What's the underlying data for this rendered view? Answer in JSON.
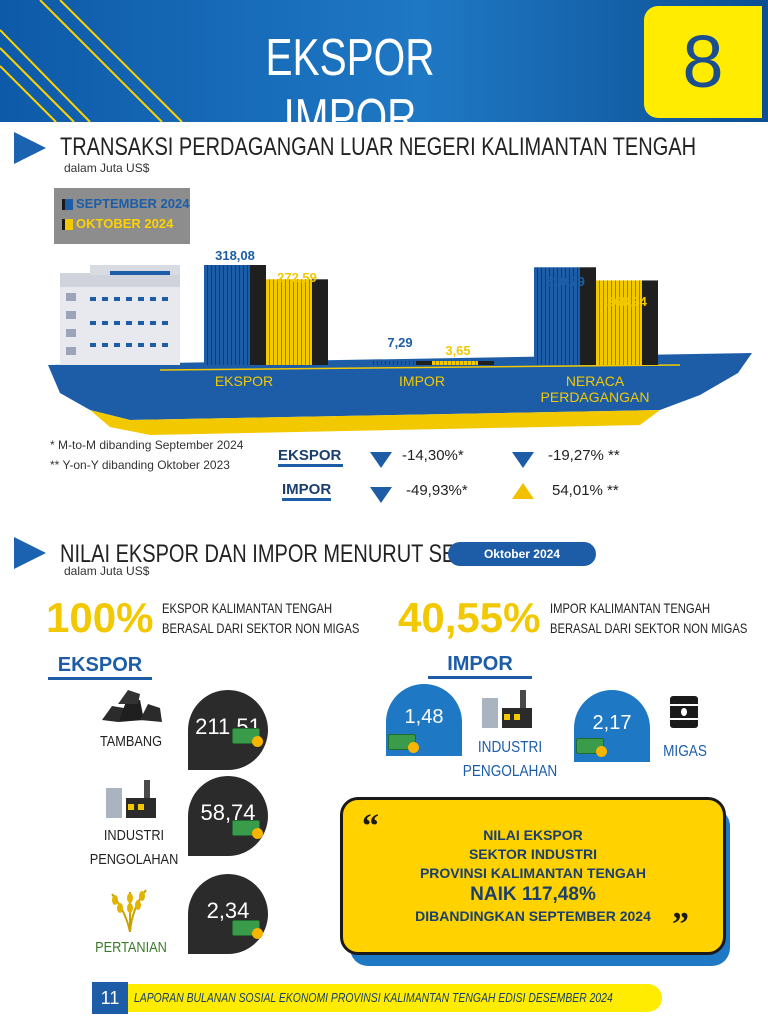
{
  "header": {
    "title": "EKSPOR IMPOR",
    "page_number": "8"
  },
  "section1": {
    "title": "TRANSAKSI PERDAGANGAN LUAR NEGERI KALIMANTAN TENGAH",
    "unit": "dalam Juta US$",
    "legend": {
      "sep": "SEPTEMBER 2024",
      "okt": "OKTOBER 2024"
    }
  },
  "chart_data": {
    "type": "bar",
    "categories": [
      "EKSPOR",
      "IMPOR",
      "NERACA PERDAGANGAN"
    ],
    "series": [
      {
        "name": "SEPTEMBER 2024",
        "values": [
          318.08,
          7.29,
          310.79
        ],
        "labels": [
          "318,08",
          "7,29",
          "310,79"
        ]
      },
      {
        "name": "OKTOBER 2024",
        "values": [
          272.59,
          3.65,
          268.94
        ],
        "labels": [
          "272,59",
          "3,65",
          "268,94"
        ]
      }
    ],
    "colors": {
      "sep": "#1d5da8",
      "okt": "#f2c800"
    }
  },
  "notes": {
    "mtm": "* M-to-M dibanding September 2024",
    "yoy": "** Y-on-Y dibanding Oktober 2023"
  },
  "changes": {
    "ekspor": {
      "label": "EKSPOR",
      "mtm": "-14,30%*",
      "yoy": "-19,27% **",
      "mtm_dir": "down",
      "yoy_dir": "down"
    },
    "impor": {
      "label": "IMPOR",
      "mtm": "-49,93%*",
      "yoy": "54,01% **",
      "mtm_dir": "down",
      "yoy_dir": "up"
    }
  },
  "section2": {
    "title": "NILAI EKSPOR DAN IMPOR MENURUT SEKTOR",
    "period": "Oktober 2024",
    "unit": "dalam Juta US$",
    "ekspor_pct": "100%",
    "ekspor_desc_1": "EKSPOR KALIMANTAN TENGAH",
    "ekspor_desc_2": "BERASAL DARI SEKTOR NON MIGAS",
    "impor_pct": "40,55%",
    "impor_desc_1": "IMPOR KALIMANTAN TENGAH",
    "impor_desc_2": "BERASAL DARI SEKTOR NON MIGAS",
    "ekspor_head": "EKSPOR",
    "impor_head": "IMPOR"
  },
  "ekspor_sectors": [
    {
      "name": "TAMBANG",
      "value": "211,51"
    },
    {
      "name_1": "INDUSTRI",
      "name_2": "PENGOLAHAN",
      "value": "58,74"
    },
    {
      "name": "PERTANIAN",
      "value": "2,34"
    }
  ],
  "impor_sectors": [
    {
      "name_1": "INDUSTRI",
      "name_2": "PENGOLAHAN",
      "value": "1,48"
    },
    {
      "name": "MIGAS",
      "value": "2,17"
    }
  ],
  "quote": {
    "line1": "NILAI EKSPOR",
    "line2": "SEKTOR INDUSTRI",
    "line3": "PROVINSI KALIMANTAN TENGAH",
    "line4": "NAIK 117,48%",
    "line5": "DIBANDINGKAN SEPTEMBER 2024"
  },
  "footer": {
    "page": "11",
    "text": "LAPORAN BULANAN SOSIAL EKONOMI PROVINSI KALIMANTAN TENGAH EDISI DESEMBER 2024"
  }
}
